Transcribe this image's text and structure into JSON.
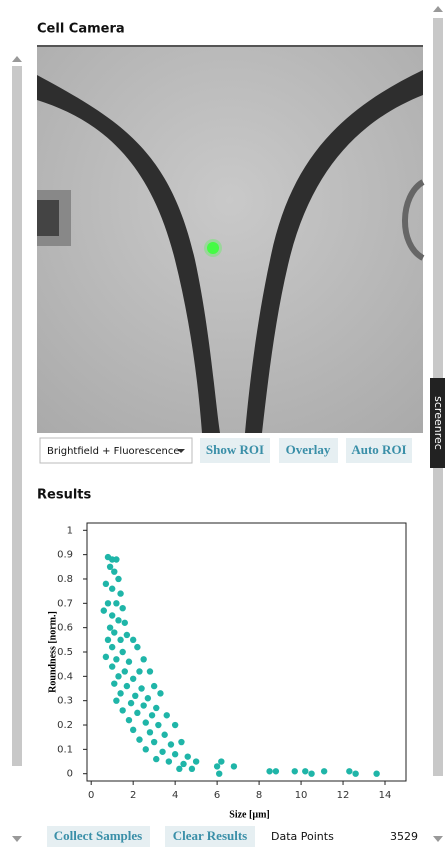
{
  "header": {
    "title": "Cell Camera"
  },
  "camera": {
    "mode": "Brightfield + Fluorescence",
    "buttons": [
      "Show ROI",
      "Overlay",
      "Auto ROI"
    ]
  },
  "results": {
    "title": "Results"
  },
  "chart_data": {
    "type": "scatter",
    "x_label": "Size [µm]",
    "y_label": "Roundness [norm.]",
    "color": "#1fb5a8",
    "x": [
      0.8,
      1.0,
      1.2,
      0.9,
      1.1,
      1.3,
      0.7,
      1.0,
      1.4,
      0.8,
      1.2,
      1.5,
      0.6,
      1.0,
      1.3,
      1.6,
      0.9,
      1.1,
      1.7,
      0.8,
      1.4,
      2.0,
      1.0,
      1.5,
      2.2,
      0.7,
      1.2,
      1.8,
      2.5,
      1.0,
      1.6,
      2.3,
      1.3,
      2.0,
      2.8,
      1.1,
      1.7,
      2.4,
      3.0,
      1.4,
      2.1,
      2.7,
      3.3,
      1.2,
      1.9,
      2.5,
      3.1,
      1.5,
      2.2,
      2.9,
      3.6,
      1.8,
      2.6,
      3.2,
      4.0,
      2.0,
      2.8,
      3.5,
      2.3,
      3.0,
      3.8,
      4.3,
      2.6,
      3.4,
      4.0,
      4.6,
      3.1,
      3.7,
      4.4,
      5.0,
      4.2,
      4.8,
      6.0,
      6.2,
      6.8,
      6.1,
      8.5,
      8.8,
      9.7,
      10.2,
      10.5,
      11.1,
      12.3,
      12.6,
      13.6
    ],
    "y": [
      0.89,
      0.88,
      0.88,
      0.85,
      0.83,
      0.8,
      0.78,
      0.76,
      0.74,
      0.7,
      0.7,
      0.68,
      0.67,
      0.65,
      0.63,
      0.62,
      0.6,
      0.58,
      0.57,
      0.55,
      0.55,
      0.55,
      0.52,
      0.5,
      0.52,
      0.48,
      0.47,
      0.46,
      0.47,
      0.44,
      0.42,
      0.42,
      0.4,
      0.39,
      0.42,
      0.37,
      0.36,
      0.35,
      0.36,
      0.33,
      0.32,
      0.31,
      0.33,
      0.3,
      0.29,
      0.28,
      0.27,
      0.26,
      0.25,
      0.24,
      0.24,
      0.22,
      0.21,
      0.2,
      0.2,
      0.18,
      0.17,
      0.16,
      0.14,
      0.13,
      0.12,
      0.13,
      0.1,
      0.09,
      0.08,
      0.07,
      0.06,
      0.05,
      0.04,
      0.05,
      0.02,
      0.02,
      0.03,
      0.05,
      0.03,
      0.0,
      0.01,
      0.01,
      0.01,
      0.01,
      0.0,
      0.01,
      0.01,
      0.0,
      0.0
    ],
    "xlim": [
      -0.2,
      15
    ],
    "ylim": [
      -0.03,
      1.03
    ],
    "xticks": [
      0,
      2,
      4,
      6,
      8,
      10,
      12,
      14
    ],
    "yticks": [
      0,
      0.1,
      0.2,
      0.3,
      0.4,
      0.5,
      0.6,
      0.7,
      0.8,
      0.9,
      1
    ]
  },
  "footer": {
    "buttons": [
      "Collect Samples",
      "Clear Results"
    ],
    "data_points_label": "Data Points",
    "data_points_value": 3529
  },
  "watermark": "screenrec"
}
